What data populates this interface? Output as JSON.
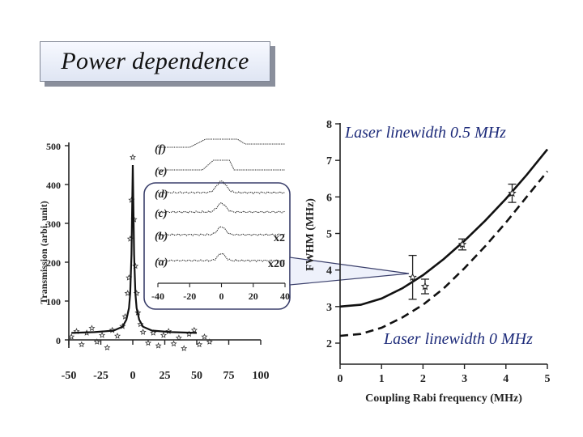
{
  "slide": {
    "title": "Power dependence"
  },
  "chart_data": [
    {
      "type": "scatter",
      "title": "",
      "xlabel": "",
      "ylabel": "Transmission (arbi. unit)",
      "xlim": [
        -50,
        100
      ],
      "ylim": [
        0,
        500
      ],
      "x_ticks": [
        "-50",
        "-25",
        "0",
        "25",
        "50",
        "75",
        "100"
      ],
      "y_ticks": [
        "0",
        "100",
        "200",
        "300",
        "400",
        "500"
      ],
      "grid": false,
      "series": [
        {
          "style": "points",
          "x": [
            -48,
            -44,
            -40,
            -36,
            -32,
            -28,
            -24,
            -20,
            -16,
            -12,
            -8,
            -6,
            -4,
            -3,
            -2,
            -1,
            0,
            1,
            2,
            3,
            4,
            6,
            8,
            12,
            16,
            20,
            24,
            28,
            32,
            36,
            40,
            44,
            48,
            52,
            56,
            60
          ],
          "y": [
            8,
            22,
            -12,
            18,
            30,
            -5,
            12,
            -20,
            25,
            10,
            35,
            60,
            120,
            160,
            260,
            360,
            470,
            310,
            190,
            120,
            70,
            40,
            20,
            -8,
            18,
            -15,
            12,
            22,
            -10,
            5,
            -22,
            15,
            25,
            -12,
            8,
            -5
          ]
        },
        {
          "style": "line",
          "x": [
            -48,
            -30,
            -15,
            -8,
            -5,
            -3,
            -2,
            -1,
            0,
            1,
            2,
            3,
            5,
            8,
            15,
            30,
            50
          ],
          "y": [
            18,
            20,
            24,
            34,
            52,
            82,
            120,
            220,
            450,
            220,
            120,
            82,
            52,
            34,
            24,
            20,
            18
          ]
        }
      ]
    },
    {
      "type": "line",
      "title": "",
      "inset": true,
      "xlabel": "",
      "ylabel": "",
      "xlim": [
        -40,
        40
      ],
      "x_ticks": [
        "-40",
        "-20",
        "0",
        "20",
        "40"
      ],
      "traces": [
        {
          "label": "(f)",
          "scale_label": ""
        },
        {
          "label": "(e)",
          "scale_label": ""
        },
        {
          "label": "(d)",
          "scale_label": ""
        },
        {
          "label": "(c)",
          "scale_label": ""
        },
        {
          "label": "(b)",
          "scale_label": "x2"
        },
        {
          "label": "(a)",
          "scale_label": "x20"
        }
      ]
    },
    {
      "type": "line",
      "title": "",
      "xlabel": "Coupling Rabi frequency (MHz)",
      "ylabel": "FWHM (MHz)",
      "xlim": [
        0,
        5
      ],
      "ylim": [
        2,
        8
      ],
      "x_ticks": [
        "0",
        "1",
        "2",
        "3",
        "4",
        "5"
      ],
      "y_ticks": [
        "2",
        "3",
        "4",
        "5",
        "6",
        "7",
        "8"
      ],
      "grid": false,
      "series": [
        {
          "name": "Laser linewidth 0.5 MHz",
          "style": "solid",
          "x": [
            0,
            0.5,
            1,
            1.5,
            2,
            2.5,
            3,
            3.5,
            4,
            4.5,
            5
          ],
          "y": [
            3.0,
            3.05,
            3.22,
            3.5,
            3.86,
            4.3,
            4.8,
            5.35,
            5.95,
            6.6,
            7.3
          ]
        },
        {
          "name": "Laser linewidth 0 MHz",
          "style": "dashed",
          "x": [
            0,
            0.5,
            1,
            1.5,
            2,
            2.5,
            3,
            3.5,
            4,
            4.5,
            5
          ],
          "y": [
            2.2,
            2.25,
            2.42,
            2.7,
            3.05,
            3.5,
            4.05,
            4.65,
            5.3,
            6.0,
            6.7
          ]
        },
        {
          "style": "points-with-error",
          "x": [
            1.75,
            2.05,
            2.95,
            4.15
          ],
          "y": [
            3.8,
            3.55,
            4.7,
            6.1
          ],
          "err": [
            0.6,
            0.2,
            0.15,
            0.25
          ]
        }
      ],
      "annotations": [
        "Laser linewidth 0.5 MHz",
        "Laser linewidth 0 MHz"
      ]
    }
  ]
}
